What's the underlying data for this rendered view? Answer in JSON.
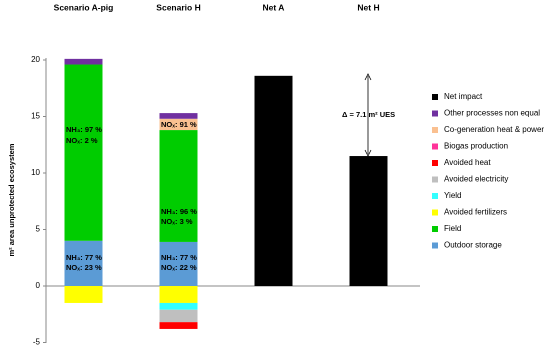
{
  "chart_data": {
    "type": "stacked-bar",
    "categories": [
      "Scenario A-pig",
      "Scenario H",
      "Net A",
      "Net H"
    ],
    "y_label": "m² area unprotected ecosystem",
    "ylim": [
      -5,
      20
    ],
    "yticks": [
      -5,
      0,
      5,
      10,
      15,
      20
    ],
    "series": [
      {
        "name": "Net impact",
        "color": "#000000",
        "values": [
          null,
          null,
          18.6,
          11.5
        ]
      },
      {
        "name": "Other processes non equal",
        "color": "#7030a0",
        "values": [
          0.5,
          0.5,
          null,
          null
        ]
      },
      {
        "name": "Co-generation heat & power",
        "color": "#fac090",
        "values": [
          null,
          1.0,
          null,
          null
        ]
      },
      {
        "name": "Biogas production",
        "color": "#ff3399",
        "values": [
          null,
          null,
          null,
          null
        ]
      },
      {
        "name": "Avoided heat",
        "color": "#ff0000",
        "values": [
          null,
          -0.6,
          null,
          null
        ]
      },
      {
        "name": "Avoided electricity",
        "color": "#bfbfbf",
        "values": [
          null,
          -1.1,
          null,
          null
        ]
      },
      {
        "name": "Yield",
        "color": "#33ffff",
        "values": [
          null,
          -0.6,
          null,
          null
        ]
      },
      {
        "name": "Avoided fertilizers",
        "color": "#ffff00",
        "values": [
          -1.5,
          -1.5,
          null,
          null
        ]
      },
      {
        "name": "Field",
        "color": "#00cc00",
        "values": [
          15.6,
          9.9,
          null,
          null
        ]
      },
      {
        "name": "Outdoor storage",
        "color": "#5b9bd5",
        "values": [
          4.0,
          3.9,
          null,
          null
        ]
      }
    ],
    "annotations": [
      "NH₃: 97 %",
      "NOₓ: 2 %",
      "NH₃: 77 %",
      "NOₓ: 23 %",
      "NOₓ: 91 %",
      "NH₃: 96 %",
      "NOₓ: 3 %",
      "NH₃: 77 %",
      "NOₓ: 22 %",
      "Δ = 7.1 m² UES"
    ]
  }
}
